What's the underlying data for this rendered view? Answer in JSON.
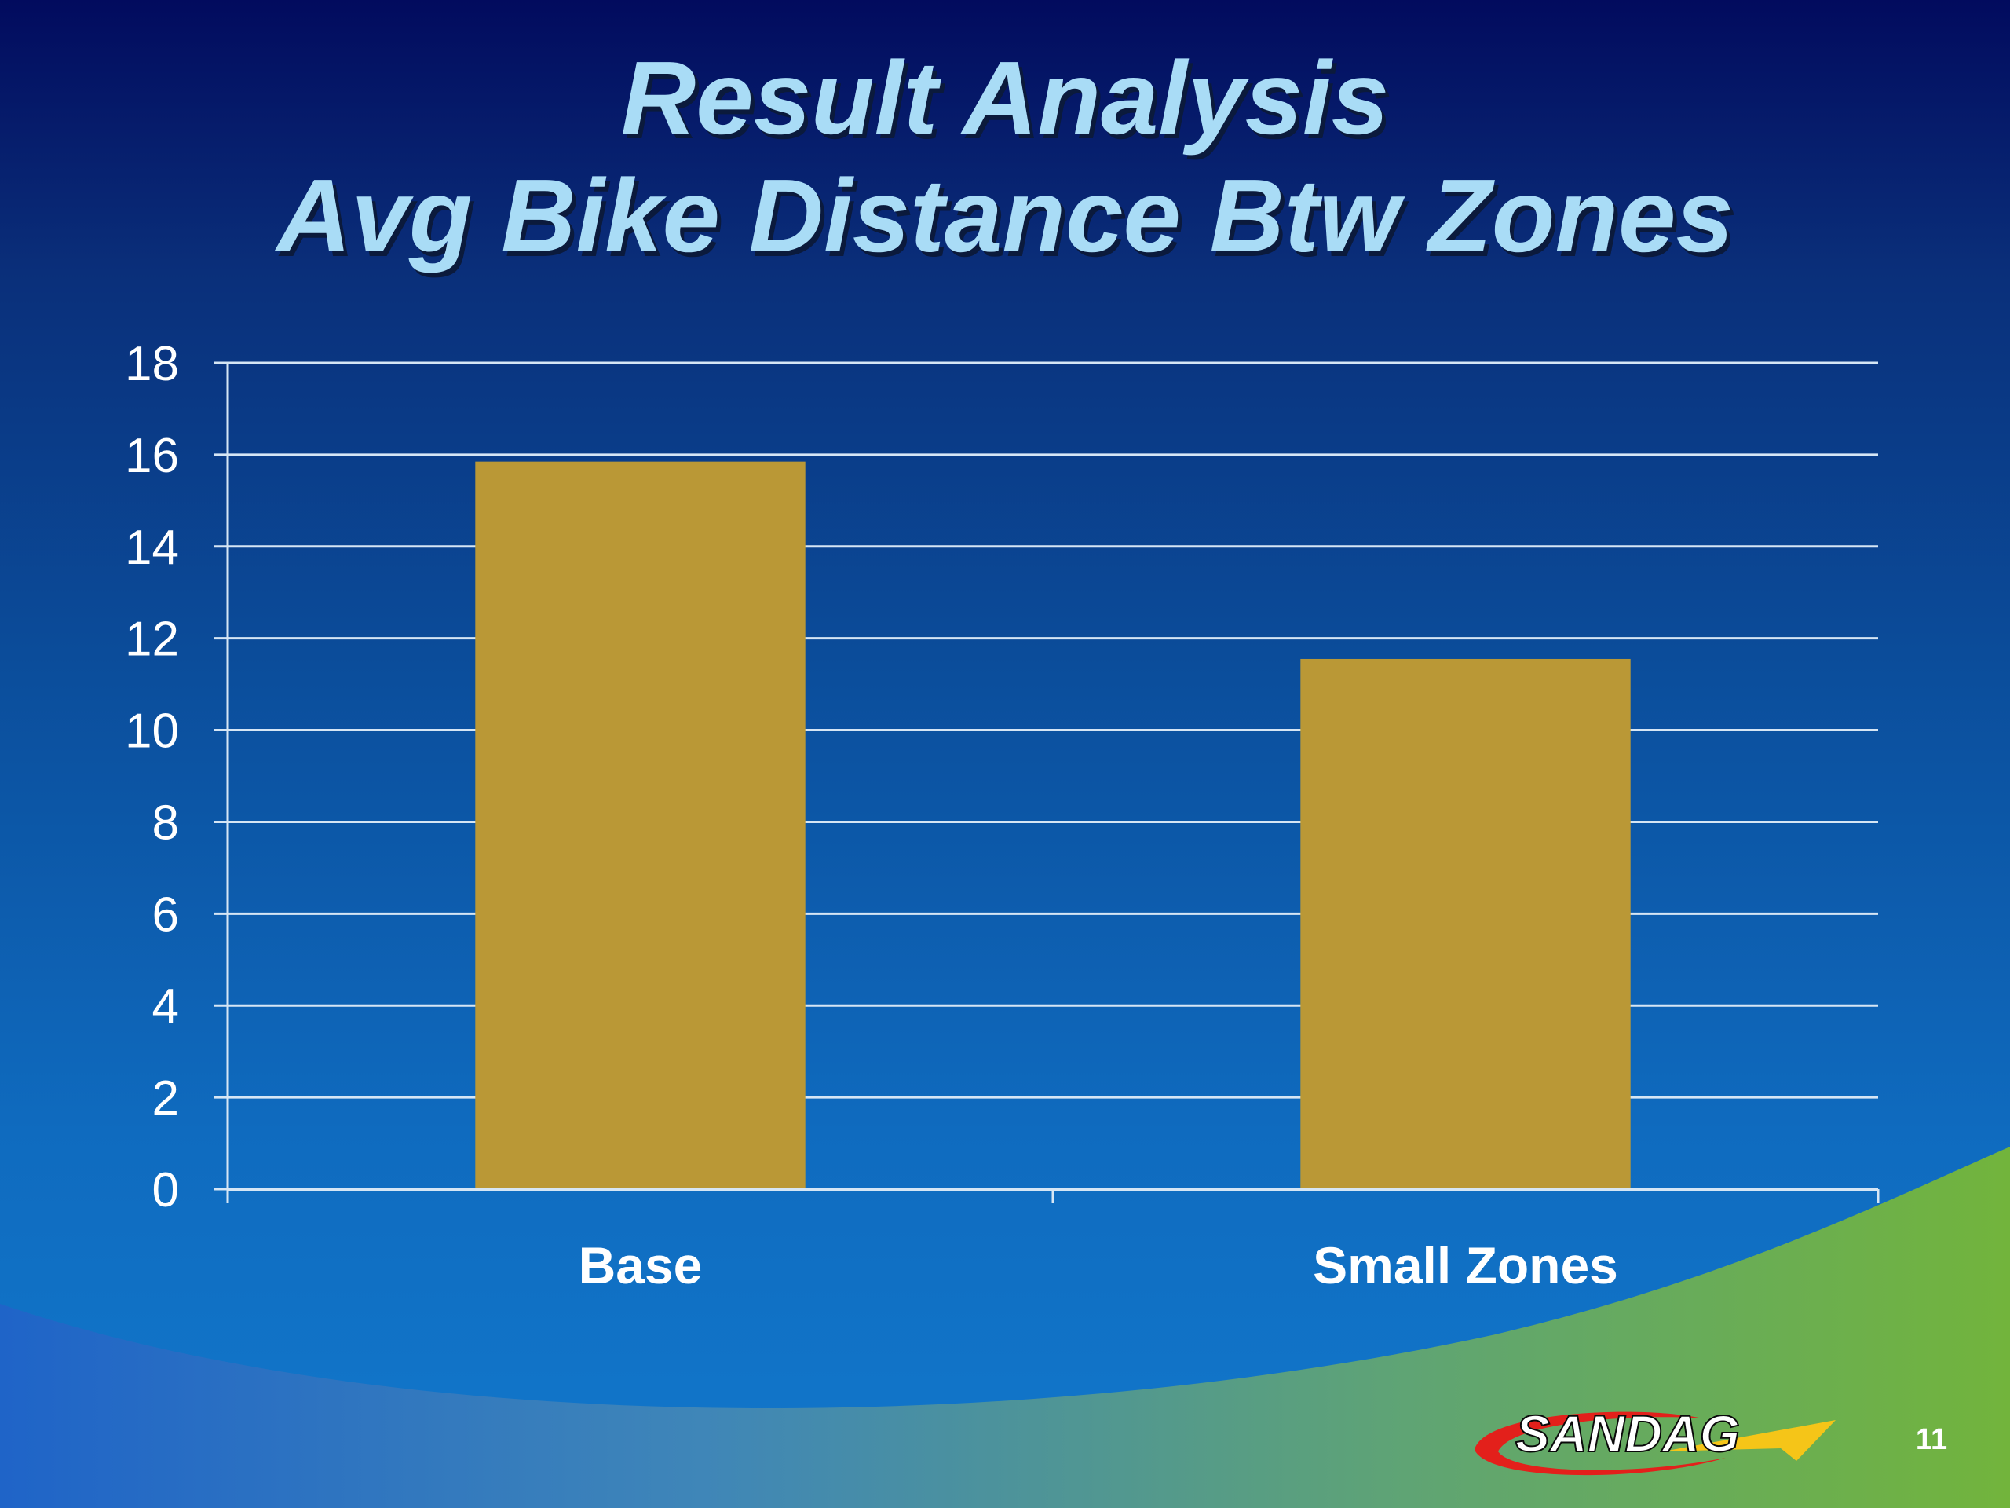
{
  "slide": {
    "title_line1": "Result Analysis",
    "title_line2": "Avg Bike Distance Btw Zones",
    "page_number": "11",
    "logo_text": "SANDAG"
  },
  "colors": {
    "bar": "#ba9836",
    "grid": "#d6e6f5",
    "title": "#a9dcf6",
    "wave_green": "#6fb33f"
  },
  "chart_data": {
    "type": "bar",
    "title": "",
    "xlabel": "",
    "ylabel": "",
    "categories": [
      "Base",
      "Small Zones"
    ],
    "series": [
      {
        "values": [
          15.85,
          11.55
        ]
      }
    ],
    "ylim": [
      0,
      18
    ],
    "yticks": [
      0,
      2,
      4,
      6,
      8,
      10,
      12,
      14,
      16,
      18
    ],
    "grid": true,
    "legend": "none"
  }
}
